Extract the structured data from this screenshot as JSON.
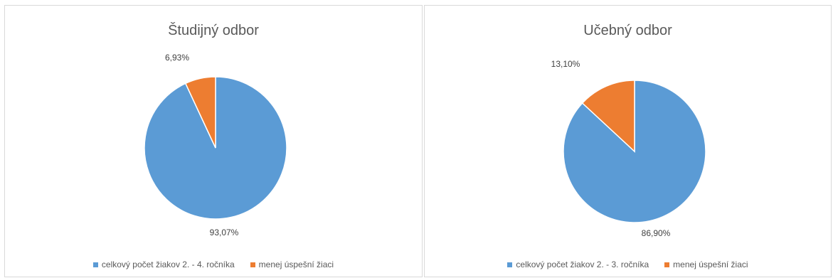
{
  "chart_data": [
    {
      "type": "pie",
      "title": "Študijný odbor",
      "slices": [
        {
          "label": "celkový počet žiakov 2. - 4. ročníka",
          "value": 93.07,
          "display": "93,07%",
          "color": "#5b9bd5"
        },
        {
          "label": "menej úspešní žiaci",
          "value": 6.93,
          "display": "6,93%",
          "color": "#ed7d31"
        }
      ],
      "legend_position": "bottom"
    },
    {
      "type": "pie",
      "title": "Učebný odbor",
      "slices": [
        {
          "label": "celkový počet žiakov 2. - 3. ročníka",
          "value": 86.9,
          "display": "86,90%",
          "color": "#5b9bd5"
        },
        {
          "label": "menej úspešní žiaci",
          "value": 13.1,
          "display": "13,10%",
          "color": "#ed7d31"
        }
      ],
      "legend_position": "bottom"
    }
  ]
}
